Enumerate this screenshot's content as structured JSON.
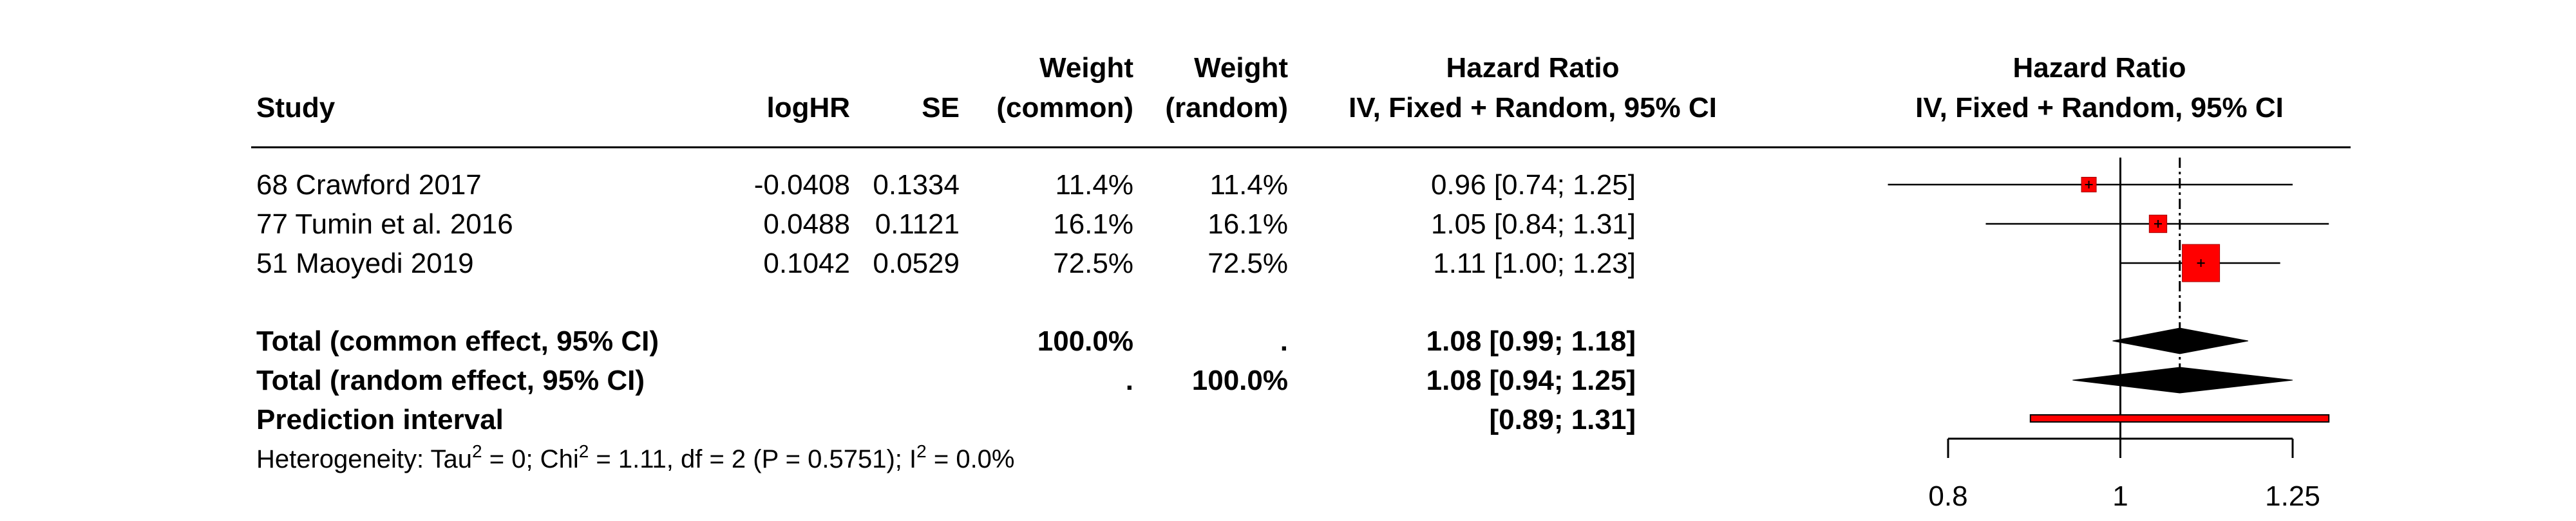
{
  "header": {
    "study": "Study",
    "loghr": "logHR",
    "se": "SE",
    "weight_label": "Weight",
    "common_sub": "(common)",
    "random_sub": "(random)",
    "hr_title": "Hazard Ratio",
    "hr_sub": "IV, Fixed + Random, 95% CI",
    "plot_title": "Hazard Ratio",
    "plot_sub": "IV, Fixed + Random, 95% CI"
  },
  "studies": [
    {
      "name": "68 Crawford 2017",
      "loghr": "-0.0408",
      "se": "0.1334",
      "w_common": "11.4%",
      "w_random": "11.4%",
      "hr_text": "0.96 [0.74; 1.25]"
    },
    {
      "name": "77 Tumin et al. 2016",
      "loghr": "0.0488",
      "se": "0.1121",
      "w_common": "16.1%",
      "w_random": "16.1%",
      "hr_text": "1.05 [0.84; 1.31]"
    },
    {
      "name": "51 Maoyedi 2019",
      "loghr": "0.1042",
      "se": "0.0529",
      "w_common": "72.5%",
      "w_random": "72.5%",
      "hr_text": "1.11 [1.00; 1.23]"
    }
  ],
  "totals": {
    "common": {
      "label": "Total (common effect, 95% CI)",
      "w_common": "100.0%",
      "w_random": ".",
      "hr_text": "1.08 [0.99; 1.18]"
    },
    "random": {
      "label": "Total (random effect, 95% CI)",
      "w_common": ".",
      "w_random": "100.0%",
      "hr_text": "1.08 [0.94; 1.25]"
    },
    "prediction": {
      "label": "Prediction interval",
      "hr_text": "[0.89; 1.31]"
    }
  },
  "heterogeneity": {
    "prefix": "Heterogeneity: Tau",
    "tau_exp": "2",
    "middle": " = 0; Chi",
    "chi_exp": "2",
    "rest": " = 1.11, df = 2 (P = 0.5751); I",
    "i_exp": "2",
    "end": " = 0.0%"
  },
  "chart_data": {
    "type": "forest",
    "x_scale": "log",
    "xlim": [
      0.8,
      1.25
    ],
    "x_ticks": [
      0.8,
      1,
      1.25
    ],
    "x_tick_labels": [
      "0.8",
      "1",
      "1.25"
    ],
    "reference_line": 1,
    "summary_line": 1.08,
    "studies": [
      {
        "name": "68 Crawford 2017",
        "hr": 0.96,
        "lower": 0.74,
        "upper": 1.25,
        "weight": 11.4
      },
      {
        "name": "77 Tumin et al. 2016",
        "hr": 1.05,
        "lower": 0.84,
        "upper": 1.31,
        "weight": 16.1
      },
      {
        "name": "51 Maoyedi 2019",
        "hr": 1.11,
        "lower": 1.0,
        "upper": 1.23,
        "weight": 72.5
      }
    ],
    "common_effect": {
      "hr": 1.08,
      "lower": 0.99,
      "upper": 1.18
    },
    "random_effect": {
      "hr": 1.08,
      "lower": 0.94,
      "upper": 1.25
    },
    "prediction_interval": {
      "lower": 0.89,
      "upper": 1.31
    },
    "colors": {
      "square": "#ff0000",
      "diamond": "#000000",
      "prediction": "#ff0000"
    }
  }
}
